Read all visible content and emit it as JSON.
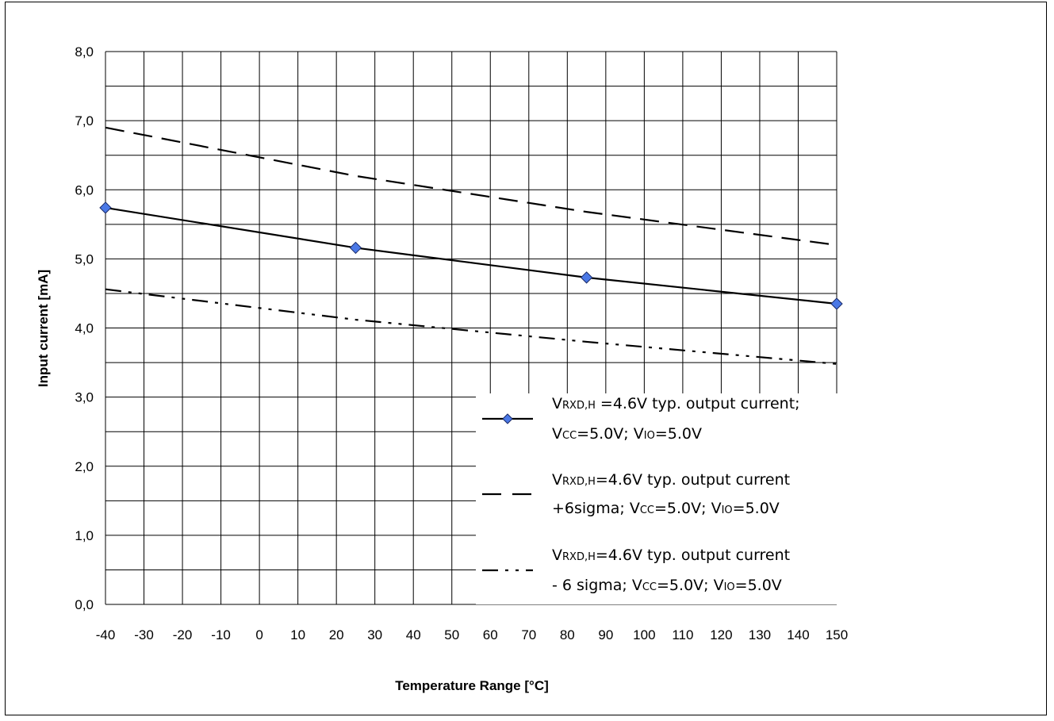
{
  "chart_data": {
    "type": "line",
    "xlabel": "Temperature Range [°C]",
    "ylabel": "Input current [mA]",
    "xlim": [
      -40,
      150
    ],
    "ylim": [
      0,
      8
    ],
    "x_ticks": [
      "-40",
      "-30",
      "-20",
      "-10",
      "0",
      "10",
      "20",
      "30",
      "40",
      "50",
      "60",
      "70",
      "80",
      "90",
      "100",
      "110",
      "120",
      "130",
      "140",
      "150"
    ],
    "y_ticks": [
      "0,0",
      "1,0",
      "2,0",
      "3,0",
      "4,0",
      "5,0",
      "6,0",
      "7,0",
      "8,0"
    ],
    "grid": true,
    "legend_position": "bottom-right",
    "series": [
      {
        "style": "solid-diamond",
        "color": "#000000",
        "marker_color": "#4a78e6",
        "legend": [
          {
            "parts": [
              [
                "V",
                ""
              ],
              [
                "RXD,H",
                "sub"
              ],
              [
                " =4.6V typ. output current;",
                ""
              ]
            ]
          },
          {
            "parts": [
              [
                "V",
                ""
              ],
              [
                "CC",
                "sub"
              ],
              [
                "=5.0V; V",
                ""
              ],
              [
                "IO",
                "sub"
              ],
              [
                "=5.0V",
                ""
              ]
            ]
          }
        ],
        "x": [
          -40,
          25,
          85,
          150
        ],
        "y": [
          5.74,
          5.16,
          4.73,
          4.35
        ]
      },
      {
        "style": "dashed",
        "color": "#000000",
        "legend": [
          {
            "parts": [
              [
                "V",
                ""
              ],
              [
                "RXD,H",
                "sub"
              ],
              [
                "=4.6V typ. output current",
                ""
              ]
            ]
          },
          {
            "parts": [
              [
                "+6sigma; V",
                ""
              ],
              [
                "CC",
                "sub"
              ],
              [
                "=5.0V; V",
                ""
              ],
              [
                "IO",
                "sub"
              ],
              [
                "=5.0V",
                ""
              ]
            ]
          }
        ],
        "x": [
          -40,
          25,
          85,
          150
        ],
        "y": [
          6.9,
          6.2,
          5.68,
          5.2
        ]
      },
      {
        "style": "dash-dot-dot",
        "color": "#000000",
        "legend": [
          {
            "parts": [
              [
                "V",
                ""
              ],
              [
                "RXD,H",
                "sub"
              ],
              [
                "=4.6V typ. output current",
                ""
              ]
            ]
          },
          {
            "parts": [
              [
                "- 6 sigma; V",
                ""
              ],
              [
                "CC",
                "sub"
              ],
              [
                "=5.0V; V",
                ""
              ],
              [
                "IO",
                "sub"
              ],
              [
                "=5.0V",
                ""
              ]
            ]
          }
        ],
        "x": [
          -40,
          25,
          85,
          150
        ],
        "y": [
          4.56,
          4.12,
          3.8,
          3.48
        ]
      }
    ]
  }
}
